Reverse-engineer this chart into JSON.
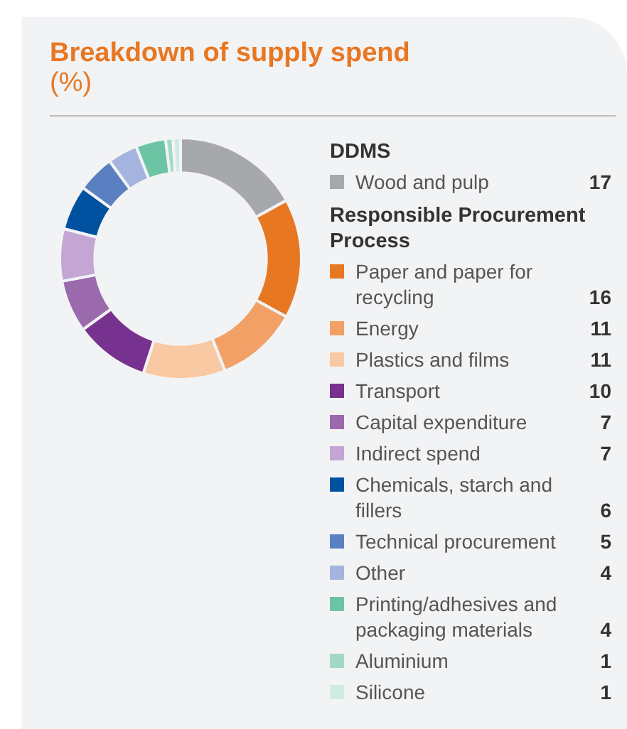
{
  "chart_data": {
    "type": "donut",
    "title": "Breakdown of supply spend",
    "subtitle": "(%)",
    "categories": [
      "Wood and pulp",
      "Paper and paper for recycling",
      "Energy",
      "Plastics and films",
      "Transport",
      "Capital expenditure",
      "Indirect spend",
      "Chemicals, starch and fillers",
      "Technical procurement",
      "Other",
      "Printing/adhesives and packaging materials",
      "Aluminium",
      "Silicone"
    ],
    "values": [
      17,
      16,
      11,
      11,
      10,
      7,
      7,
      6,
      5,
      4,
      4,
      1,
      1
    ],
    "colors": [
      "#a7a8ab",
      "#e87722",
      "#f2a066",
      "#f8c9a3",
      "#77328f",
      "#9b6aad",
      "#c3a6d3",
      "#0052a0",
      "#5b80c2",
      "#a5b4de",
      "#6cc4a4",
      "#a3d9c4",
      "#d0ece2"
    ],
    "annotations": [
      "DDMS",
      "Responsible Procurement Process"
    ],
    "data_labels": true,
    "legend": "right"
  }
}
